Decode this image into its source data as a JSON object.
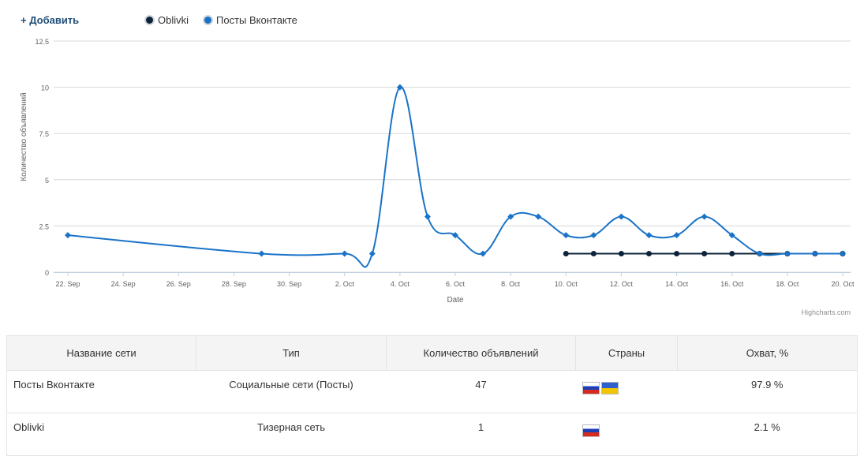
{
  "toolbar": {
    "add_label": "+ Добавить"
  },
  "legend": [
    {
      "label": "Oblivki",
      "color": "#0d233a"
    },
    {
      "label": "Посты Вконтакте",
      "color": "#1a73c8"
    }
  ],
  "credits": "Highcharts.com",
  "chart_data": {
    "type": "line",
    "xlabel": "Date",
    "ylabel": "Количество объявлений",
    "ylim": [
      0,
      12.5
    ],
    "yticks": [
      "0",
      "2.5",
      "5",
      "7.5",
      "10",
      "12.5"
    ],
    "xticks": [
      "22. Sep",
      "24. Sep",
      "26. Sep",
      "28. Sep",
      "30. Sep",
      "2. Oct",
      "4. Oct",
      "6. Oct",
      "8. Oct",
      "10. Oct",
      "12. Oct",
      "14. Oct",
      "16. Oct",
      "18. Oct",
      "20. Oct"
    ],
    "series": [
      {
        "name": "Посты Вконтакте",
        "color": "#1a73c8",
        "x": [
          "2013-09-22",
          "2013-09-29",
          "2013-10-02",
          "2013-10-03",
          "2013-10-04",
          "2013-10-05",
          "2013-10-06",
          "2013-10-07",
          "2013-10-08",
          "2013-10-09",
          "2013-10-10",
          "2013-10-11",
          "2013-10-12",
          "2013-10-13",
          "2013-10-14",
          "2013-10-15",
          "2013-10-16",
          "2013-10-17",
          "2013-10-18",
          "2013-10-19",
          "2013-10-20"
        ],
        "values": [
          2,
          1,
          1,
          1,
          10,
          3,
          2,
          1,
          3,
          3,
          2,
          2,
          3,
          2,
          2,
          3,
          2,
          1,
          1,
          1,
          1
        ]
      },
      {
        "name": "Oblivki",
        "color": "#0d233a",
        "x": [
          "2013-10-10",
          "2013-10-11",
          "2013-10-12",
          "2013-10-13",
          "2013-10-14",
          "2013-10-15",
          "2013-10-16",
          "2013-10-17",
          "2013-10-18",
          "2013-10-19",
          "2013-10-20"
        ],
        "values": [
          1,
          1,
          1,
          1,
          1,
          1,
          1,
          1,
          1,
          1,
          1
        ]
      }
    ]
  },
  "table": {
    "headers": [
      "Название сети",
      "Тип",
      "Количество объявлений",
      "Страны",
      "Охват, %"
    ],
    "rows": [
      {
        "network": "Посты Вконтакте",
        "type": "Социальные сети (Посты)",
        "count": "47",
        "countries": [
          "ru",
          "ua"
        ],
        "reach": "97.9 %"
      },
      {
        "network": "Oblivki",
        "type": "Тизерная сеть",
        "count": "1",
        "countries": [
          "ru"
        ],
        "reach": "2.1 %"
      }
    ]
  }
}
